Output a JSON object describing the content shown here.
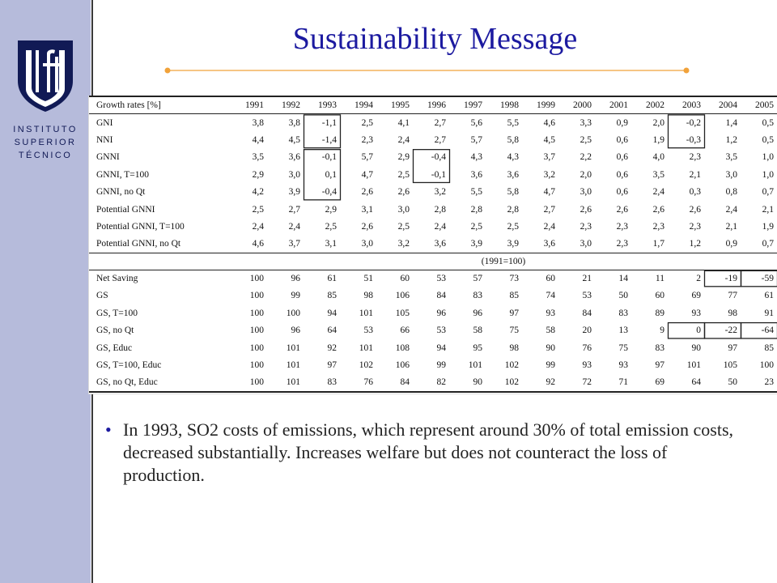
{
  "slide": {
    "title": "Sustainability Message",
    "bullets": [
      "In 1993, SO2 costs of emissions, which represent around 30% of total emission costs, decreased substantially. Increases welfare but does not counteract the loss of production."
    ]
  },
  "logo": {
    "lines": [
      "INSTITUTO",
      "SUPERIOR",
      "TÉCNICO"
    ],
    "colors": {
      "shield": "#111a55",
      "sidebar": "#b6bbdb",
      "accent": "#f1a23a"
    }
  },
  "table": {
    "header_label": "Growth rates [%]",
    "years": [
      "1991",
      "1992",
      "1993",
      "1994",
      "1995",
      "1996",
      "1997",
      "1998",
      "1999",
      "2000",
      "2001",
      "2002",
      "2003",
      "2004",
      "2005"
    ],
    "growth_rows": [
      {
        "label": "GNI",
        "values": [
          "3,8",
          "3,8",
          "-1,1",
          "2,5",
          "4,1",
          "2,7",
          "5,6",
          "5,5",
          "4,6",
          "3,3",
          "0,9",
          "2,0",
          "-0,2",
          "1,4",
          "0,5"
        ]
      },
      {
        "label": "NNI",
        "values": [
          "4,4",
          "4,5",
          "-1,4",
          "2,3",
          "2,4",
          "2,7",
          "5,7",
          "5,8",
          "4,5",
          "2,5",
          "0,6",
          "1,9",
          "-0,3",
          "1,2",
          "0,5"
        ]
      },
      {
        "label": "GNNI",
        "values": [
          "3,5",
          "3,6",
          "-0,1",
          "5,7",
          "2,9",
          "-0,4",
          "4,3",
          "4,3",
          "3,7",
          "2,2",
          "0,6",
          "4,0",
          "2,3",
          "3,5",
          "1,0"
        ]
      },
      {
        "label": "GNNI, T=100",
        "values": [
          "2,9",
          "3,0",
          "0,1",
          "4,7",
          "2,5",
          "-0,1",
          "3,6",
          "3,6",
          "3,2",
          "2,0",
          "0,6",
          "3,5",
          "2,1",
          "3,0",
          "1,0"
        ]
      },
      {
        "label": "GNNI, no Qt",
        "values": [
          "4,2",
          "3,9",
          "-0,4",
          "2,6",
          "2,6",
          "3,2",
          "5,5",
          "5,8",
          "4,7",
          "3,0",
          "0,6",
          "2,4",
          "0,3",
          "0,8",
          "0,7"
        ]
      },
      {
        "label": "Potential GNNI",
        "values": [
          "2,5",
          "2,7",
          "2,9",
          "3,1",
          "3,0",
          "2,8",
          "2,8",
          "2,8",
          "2,7",
          "2,6",
          "2,6",
          "2,6",
          "2,6",
          "2,4",
          "2,1"
        ]
      },
      {
        "label": "Potential GNNI, T=100",
        "values": [
          "2,4",
          "2,4",
          "2,5",
          "2,6",
          "2,5",
          "2,4",
          "2,5",
          "2,5",
          "2,4",
          "2,3",
          "2,3",
          "2,3",
          "2,3",
          "2,1",
          "1,9"
        ]
      },
      {
        "label": "Potential GNNI, no Qt",
        "values": [
          "4,6",
          "3,7",
          "3,1",
          "3,0",
          "3,2",
          "3,6",
          "3,9",
          "3,9",
          "3,6",
          "3,0",
          "2,3",
          "1,7",
          "1,2",
          "0,9",
          "0,7"
        ]
      }
    ],
    "base_year_label": "(1991=100)",
    "index_rows": [
      {
        "label": "Net Saving",
        "values": [
          "100",
          "96",
          "61",
          "51",
          "60",
          "53",
          "57",
          "73",
          "60",
          "21",
          "14",
          "11",
          "2",
          "-19",
          "-59"
        ]
      },
      {
        "label": "GS",
        "values": [
          "100",
          "99",
          "85",
          "98",
          "106",
          "84",
          "83",
          "85",
          "74",
          "53",
          "50",
          "60",
          "69",
          "77",
          "61"
        ]
      },
      {
        "label": "GS, T=100",
        "values": [
          "100",
          "100",
          "94",
          "101",
          "105",
          "96",
          "96",
          "97",
          "93",
          "84",
          "83",
          "89",
          "93",
          "98",
          "91"
        ]
      },
      {
        "label": "GS, no Qt",
        "values": [
          "100",
          "96",
          "64",
          "53",
          "66",
          "53",
          "58",
          "75",
          "58",
          "20",
          "13",
          "9",
          "0",
          "-22",
          "-64"
        ]
      },
      {
        "label": "GS, Educ",
        "values": [
          "100",
          "101",
          "92",
          "101",
          "108",
          "94",
          "95",
          "98",
          "90",
          "76",
          "75",
          "83",
          "90",
          "97",
          "85"
        ]
      },
      {
        "label": "GS, T=100, Educ",
        "values": [
          "100",
          "101",
          "97",
          "102",
          "106",
          "99",
          "101",
          "102",
          "99",
          "93",
          "93",
          "97",
          "101",
          "105",
          "100"
        ]
      },
      {
        "label": "GS, no Qt, Educ",
        "values": [
          "100",
          "101",
          "83",
          "76",
          "84",
          "82",
          "90",
          "102",
          "92",
          "72",
          "71",
          "69",
          "64",
          "50",
          "23"
        ]
      }
    ]
  }
}
